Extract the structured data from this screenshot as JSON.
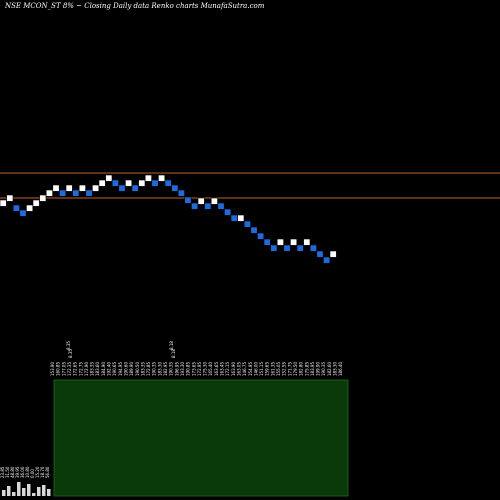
{
  "title": "NSE MCON_ST 8% ~  Closing Daily data  Renko  charts MunafaSutra.com",
  "colors": {
    "background": "#000000",
    "up_brick": "#ffffff",
    "down_brick": "#1e6be0",
    "brick_border": "#000000",
    "resistance_line": "#c0622b",
    "volume_fill": "#0a3a0a",
    "volume_stroke": "#1f6b1f",
    "small_volume": "#ffffff"
  },
  "chart_data": {
    "type": "renko",
    "title": "NSE MCON_ST 8% ~  Closing Daily data  Renko  charts MunafaSutra.com",
    "lines": [
      {
        "level": 173
      },
      {
        "level": 198
      }
    ],
    "bricks": [
      {
        "dir": "up",
        "top": 200
      },
      {
        "dir": "up",
        "top": 195
      },
      {
        "dir": "down",
        "top": 205
      },
      {
        "dir": "down",
        "top": 210
      },
      {
        "dir": "up",
        "top": 205
      },
      {
        "dir": "up",
        "top": 200
      },
      {
        "dir": "up",
        "top": 195
      },
      {
        "dir": "up",
        "top": 190
      },
      {
        "dir": "up",
        "top": 185
      },
      {
        "dir": "down",
        "top": 190
      },
      {
        "dir": "up",
        "top": 185
      },
      {
        "dir": "down",
        "top": 190
      },
      {
        "dir": "up",
        "top": 185
      },
      {
        "dir": "down",
        "top": 190
      },
      {
        "dir": "up",
        "top": 185
      },
      {
        "dir": "up",
        "top": 180
      },
      {
        "dir": "up",
        "top": 175
      },
      {
        "dir": "down",
        "top": 180
      },
      {
        "dir": "down",
        "top": 185
      },
      {
        "dir": "up",
        "top": 180
      },
      {
        "dir": "down",
        "top": 185
      },
      {
        "dir": "up",
        "top": 180
      },
      {
        "dir": "up",
        "top": 175
      },
      {
        "dir": "down",
        "top": 180
      },
      {
        "dir": "up",
        "top": 175
      },
      {
        "dir": "down",
        "top": 180
      },
      {
        "dir": "down",
        "top": 185
      },
      {
        "dir": "down",
        "top": 190
      },
      {
        "dir": "down",
        "top": 197
      },
      {
        "dir": "down",
        "top": 203
      },
      {
        "dir": "up",
        "top": 198
      },
      {
        "dir": "down",
        "top": 203
      },
      {
        "dir": "up",
        "top": 198
      },
      {
        "dir": "down",
        "top": 203
      },
      {
        "dir": "down",
        "top": 209
      },
      {
        "dir": "down",
        "top": 215
      },
      {
        "dir": "up",
        "top": 215
      },
      {
        "dir": "down",
        "top": 221
      },
      {
        "dir": "down",
        "top": 227
      },
      {
        "dir": "down",
        "top": 233
      },
      {
        "dir": "down",
        "top": 239
      },
      {
        "dir": "down",
        "top": 245
      },
      {
        "dir": "up",
        "top": 239
      },
      {
        "dir": "down",
        "top": 245
      },
      {
        "dir": "up",
        "top": 239
      },
      {
        "dir": "down",
        "top": 245
      },
      {
        "dir": "up",
        "top": 239
      },
      {
        "dir": "down",
        "top": 245
      },
      {
        "dir": "down",
        "top": 251
      },
      {
        "dir": "down",
        "top": 257
      },
      {
        "dir": "up",
        "top": 251
      }
    ],
    "price_labels": [
      "153.90",
      "160.85",
      "177.05",
      "172.35",
      "172.65",
      "172.75",
      "172.90",
      "183.35",
      "183.60",
      "184.90",
      "192.40",
      "190.65",
      "194.95",
      "190.60",
      "189.90",
      "190.50",
      "183.35",
      "172.85",
      "190.35",
      "183.30",
      "182.95",
      "190.35",
      "196.95",
      "193.30",
      "190.85",
      "173.65",
      "172.95",
      "175.30",
      "165.40",
      "163.65",
      "163.45",
      "172.15",
      "163.90",
      "163.05",
      "146.75",
      "154.95",
      "146.00",
      "151.15",
      "159.65",
      "161.35",
      "155.05",
      "152.55",
      "171.75",
      "179.50",
      "182.80",
      "175.85",
      "183.95",
      "199.90",
      "190.35",
      "182.60",
      "183.30",
      "186.40"
    ],
    "misc_labels": [
      "8.35",
      "8.35",
      "8.18",
      "8.18"
    ],
    "volume_labels": [
      "23.85",
      "31.50",
      "48.80",
      "39.95",
      "36.00",
      "10.80",
      "0.00",
      "15.20",
      "18.70",
      "56.80"
    ],
    "volume_block": {
      "note": "large volume area"
    }
  }
}
